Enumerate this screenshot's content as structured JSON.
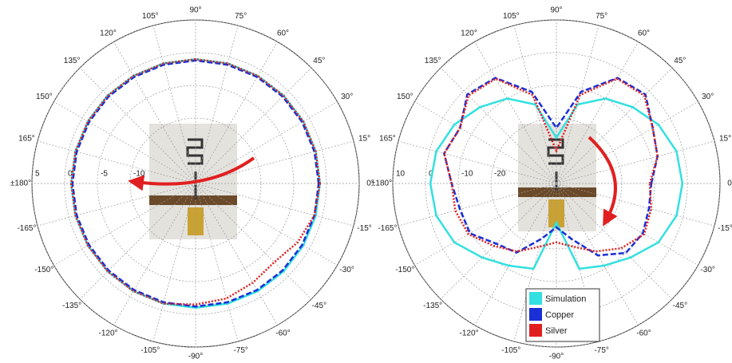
{
  "chart_data": [
    {
      "type": "polar",
      "theta": [
        0,
        15,
        30,
        45,
        60,
        75,
        90,
        105,
        120,
        135,
        150,
        165,
        180,
        -165,
        -150,
        -135,
        -120,
        -105,
        -90,
        -75,
        -60,
        -45,
        -30,
        -15
      ],
      "rlim": [
        -20,
        5
      ],
      "rticks": [
        -10,
        -5,
        0,
        5
      ],
      "thetaticks": [
        {
          "value": 0,
          "label": "0°"
        },
        {
          "value": 15,
          "label": "15°"
        },
        {
          "value": 30,
          "label": "30°"
        },
        {
          "value": 45,
          "label": "45°"
        },
        {
          "value": 60,
          "label": "60°"
        },
        {
          "value": 75,
          "label": "75°"
        },
        {
          "value": 90,
          "label": "90°"
        },
        {
          "value": 105,
          "label": "105°"
        },
        {
          "value": 120,
          "label": "120°"
        },
        {
          "value": 135,
          "label": "135°"
        },
        {
          "value": 150,
          "label": "150°"
        },
        {
          "value": 165,
          "label": "165°"
        },
        {
          "value": 180,
          "label": "±180°"
        },
        {
          "value": -165,
          "label": "-165°"
        },
        {
          "value": -150,
          "label": "-150°"
        },
        {
          "value": -135,
          "label": "-135°"
        },
        {
          "value": -120,
          "label": "-120°"
        },
        {
          "value": -105,
          "label": "-105°"
        },
        {
          "value": -90,
          "label": "-90°"
        },
        {
          "value": -75,
          "label": "-75°"
        },
        {
          "value": -60,
          "label": "-60°"
        },
        {
          "value": -45,
          "label": "-45°"
        },
        {
          "value": -30,
          "label": "-30°"
        },
        {
          "value": -15,
          "label": "-15°"
        }
      ],
      "grid": true,
      "series": [
        {
          "color": "#33e0e0",
          "style": "solid",
          "values": [
            -1,
            -1,
            -1,
            -1,
            -1,
            -1,
            -1,
            -1,
            -1,
            -1,
            -1,
            -1,
            -1,
            -1,
            -1,
            -1,
            -1,
            -1,
            -1,
            -1,
            -1,
            -1,
            -1,
            -1
          ]
        },
        {
          "color": "#1a2fd6",
          "style": "dashed",
          "values": [
            -1.2,
            -1.2,
            -1.2,
            -1.2,
            -1.2,
            -1.2,
            -1.2,
            -1.2,
            -1.2,
            -1.2,
            -1.2,
            -1.2,
            -1.2,
            -1.2,
            -1.2,
            -1.2,
            -1.2,
            -1.2,
            -1.2,
            -1.2,
            -1.2,
            -1.2,
            -1.2,
            -1.2
          ]
        },
        {
          "color": "#e02020",
          "style": "dotted",
          "values": [
            -1,
            -1,
            -1,
            -1,
            -1,
            -1,
            -1,
            -1,
            -1,
            -1,
            -1,
            -1,
            -1,
            -1,
            -1,
            -1,
            -1,
            -1,
            -1.5,
            -1.8,
            -2.5,
            -3,
            -2,
            -1.2
          ]
        }
      ]
    },
    {
      "type": "polar",
      "theta": [
        0,
        15,
        30,
        45,
        60,
        75,
        90,
        105,
        120,
        135,
        150,
        165,
        180,
        -165,
        -150,
        -135,
        -120,
        -105,
        -90,
        -75,
        -60,
        -45,
        -30,
        -15
      ],
      "rlim": [
        -40,
        10
      ],
      "rticks": [
        -20,
        -10,
        0,
        10
      ],
      "thetaticks": [
        {
          "value": 0,
          "label": "0°"
        },
        {
          "value": 15,
          "label": "15°"
        },
        {
          "value": 30,
          "label": "30°"
        },
        {
          "value": 45,
          "label": "45°"
        },
        {
          "value": 60,
          "label": "60°"
        },
        {
          "value": 75,
          "label": "75°"
        },
        {
          "value": 90,
          "label": "90°"
        },
        {
          "value": 105,
          "label": "105°"
        },
        {
          "value": 120,
          "label": "120°"
        },
        {
          "value": 135,
          "label": "135°"
        },
        {
          "value": 150,
          "label": "150°"
        },
        {
          "value": 165,
          "label": "165°"
        },
        {
          "value": 180,
          "label": "±180°"
        },
        {
          "value": -165,
          "label": "-165°"
        },
        {
          "value": -150,
          "label": "-150°"
        },
        {
          "value": -135,
          "label": "-135°"
        },
        {
          "value": -120,
          "label": "-120°"
        },
        {
          "value": -105,
          "label": "-105°"
        },
        {
          "value": -90,
          "label": "-90°"
        },
        {
          "value": -75,
          "label": "-75°"
        },
        {
          "value": -60,
          "label": "-60°"
        },
        {
          "value": -45,
          "label": "-45°"
        },
        {
          "value": -30,
          "label": "-30°"
        },
        {
          "value": -15,
          "label": "-15°"
        }
      ],
      "grid": true,
      "series": [
        {
          "name": "Simulation",
          "color": "#33e0e0",
          "style": "solid",
          "values": [
            -1.5,
            -2,
            -4,
            -7,
            -10,
            -15,
            -26,
            -15,
            -10,
            -7,
            -4,
            -2,
            -1.5,
            -2,
            -4,
            -8,
            -11,
            -13,
            -28,
            -13,
            -11,
            -8,
            -4,
            -2
          ]
        },
        {
          "name": "Copper",
          "color": "#1a2fd6",
          "style": "dashed",
          "values": [
            -11,
            -8,
            -6,
            -1.5,
            -2.7,
            -11,
            -23,
            -11,
            -2.7,
            -1.5,
            -6,
            -4.5,
            -8,
            -9.5,
            -9.5,
            -14,
            -15.6,
            -22.5,
            -26.6,
            -22.5,
            -14.6,
            -10,
            -9.5,
            -10.7
          ]
        },
        {
          "name": "Silver",
          "color": "#e02020",
          "style": "dotted",
          "values": [
            -11.5,
            -8,
            -6,
            -2,
            -3,
            -12,
            -30,
            -12,
            -3,
            -2,
            -6,
            -4.5,
            -8,
            -8,
            -9,
            -13,
            -16,
            -20,
            -22,
            -20,
            -16,
            -12,
            -9,
            -10
          ]
        }
      ]
    }
  ]
}
